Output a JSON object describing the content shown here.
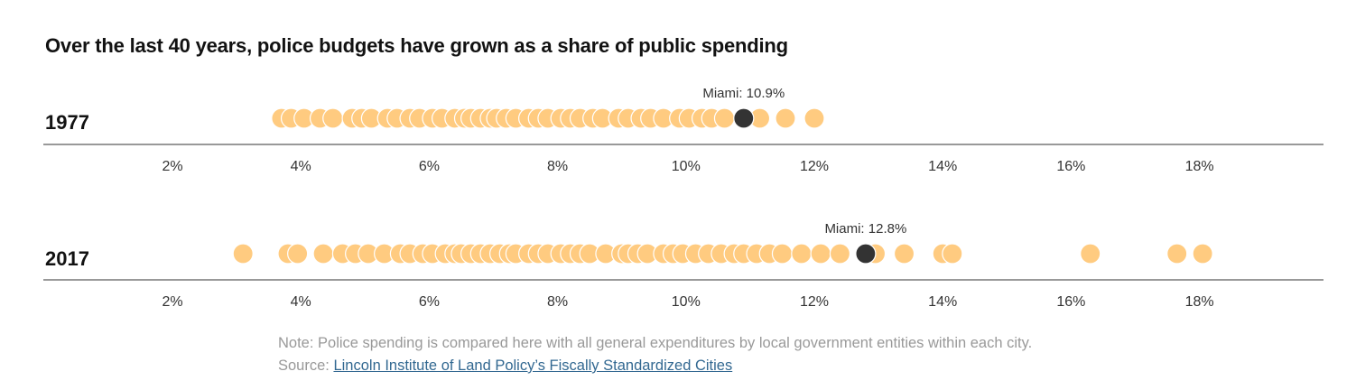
{
  "title": "Over the last 40 years, police budgets have grown as a share of public spending",
  "note": {
    "text": "Note: Police spending is compared here with all general expenditures by local government entities within each city. Source: ",
    "link_label": "Lincoln Institute of Land Policy’s Fiscally Standardized Cities"
  },
  "colors": {
    "dot": "#ffcb80",
    "highlight": "#333333",
    "axis": "#333333",
    "tick_text": "#333333",
    "label_text": "#333333"
  },
  "chart_data": {
    "type": "scatter",
    "title": "Over the last 40 years, police budgets have grown as a share of public spending",
    "xlabel": "",
    "ylabel": "",
    "x_unit": "%",
    "xlim": [
      0,
      19.5
    ],
    "ticks": [
      2,
      4,
      6,
      8,
      10,
      12,
      14,
      16,
      18
    ],
    "tick_labels": [
      "2%",
      "4%",
      "6%",
      "8%",
      "10%",
      "12%",
      "14%",
      "16%",
      "18%"
    ],
    "grid": false,
    "rows": [
      {
        "label": "1977",
        "values": [
          3.7,
          3.85,
          4.05,
          4.3,
          4.5,
          4.8,
          4.95,
          5.1,
          5.35,
          5.5,
          5.7,
          5.85,
          6.05,
          6.2,
          6.4,
          6.55,
          6.65,
          6.8,
          6.95,
          7.05,
          7.2,
          7.35,
          7.55,
          7.7,
          7.85,
          8.05,
          8.2,
          8.35,
          8.55,
          8.7,
          8.95,
          9.1,
          9.3,
          9.45,
          9.65,
          9.9,
          10.05,
          10.25,
          10.4,
          10.6,
          11.15,
          11.55,
          12.0
        ],
        "highlight": {
          "name": "Miami",
          "value": 10.9,
          "label": "Miami: 10.9%"
        }
      },
      {
        "label": "2017",
        "values": [
          3.1,
          3.8,
          3.95,
          4.35,
          4.65,
          4.85,
          5.05,
          5.3,
          5.55,
          5.7,
          5.9,
          6.05,
          6.25,
          6.4,
          6.5,
          6.65,
          6.8,
          6.95,
          7.1,
          7.25,
          7.35,
          7.55,
          7.7,
          7.85,
          8.05,
          8.2,
          8.35,
          8.5,
          8.75,
          9.0,
          9.1,
          9.25,
          9.4,
          9.65,
          9.8,
          9.95,
          10.15,
          10.35,
          10.55,
          10.75,
          10.9,
          11.1,
          11.3,
          11.5,
          11.8,
          12.1,
          12.4,
          12.95,
          13.4,
          14.0,
          14.15,
          16.3,
          17.65,
          18.05
        ],
        "highlight": {
          "name": "Miami",
          "value": 12.8,
          "label": "Miami: 12.8%"
        }
      }
    ]
  }
}
